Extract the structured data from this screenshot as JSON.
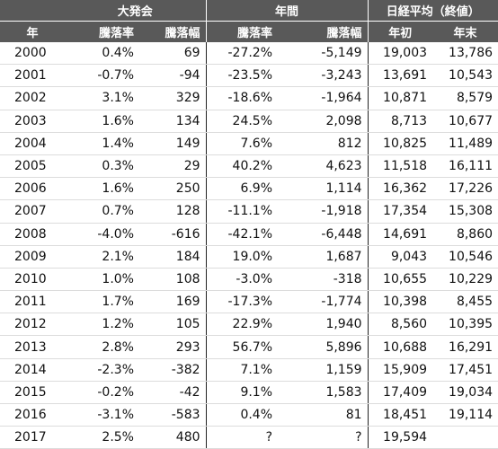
{
  "headers": {
    "group": [
      "",
      "大発会",
      "年間",
      "日経平均（終値）"
    ],
    "sub": [
      "年",
      "騰落率",
      "騰落幅",
      "騰落率",
      "騰落幅",
      "年初",
      "年末"
    ]
  },
  "rows": [
    [
      "2000",
      "0.4%",
      "69",
      "-27.2%",
      "-5,149",
      "19,003",
      "13,786"
    ],
    [
      "2001",
      "-0.7%",
      "-94",
      "-23.5%",
      "-3,243",
      "13,691",
      "10,543"
    ],
    [
      "2002",
      "3.1%",
      "329",
      "-18.6%",
      "-1,964",
      "10,871",
      "8,579"
    ],
    [
      "2003",
      "1.6%",
      "134",
      "24.5%",
      "2,098",
      "8,713",
      "10,677"
    ],
    [
      "2004",
      "1.4%",
      "149",
      "7.6%",
      "812",
      "10,825",
      "11,489"
    ],
    [
      "2005",
      "0.3%",
      "29",
      "40.2%",
      "4,623",
      "11,518",
      "16,111"
    ],
    [
      "2006",
      "1.6%",
      "250",
      "6.9%",
      "1,114",
      "16,362",
      "17,226"
    ],
    [
      "2007",
      "0.7%",
      "128",
      "-11.1%",
      "-1,918",
      "17,354",
      "15,308"
    ],
    [
      "2008",
      "-4.0%",
      "-616",
      "-42.1%",
      "-6,448",
      "14,691",
      "8,860"
    ],
    [
      "2009",
      "2.1%",
      "184",
      "19.0%",
      "1,687",
      "9,043",
      "10,546"
    ],
    [
      "2010",
      "1.0%",
      "108",
      "-3.0%",
      "-318",
      "10,655",
      "10,229"
    ],
    [
      "2011",
      "1.7%",
      "169",
      "-17.3%",
      "-1,774",
      "10,398",
      "8,455"
    ],
    [
      "2012",
      "1.2%",
      "105",
      "22.9%",
      "1,940",
      "8,560",
      "10,395"
    ],
    [
      "2013",
      "2.8%",
      "293",
      "56.7%",
      "5,896",
      "10,688",
      "16,291"
    ],
    [
      "2014",
      "-2.3%",
      "-382",
      "7.1%",
      "1,159",
      "15,909",
      "17,451"
    ],
    [
      "2015",
      "-0.2%",
      "-42",
      "9.1%",
      "1,583",
      "17,409",
      "19,034"
    ],
    [
      "2016",
      "-3.1%",
      "-583",
      "0.4%",
      "81",
      "18,451",
      "19,114"
    ],
    [
      "2017",
      "2.5%",
      "480",
      "?",
      "?",
      "19,594",
      ""
    ]
  ]
}
